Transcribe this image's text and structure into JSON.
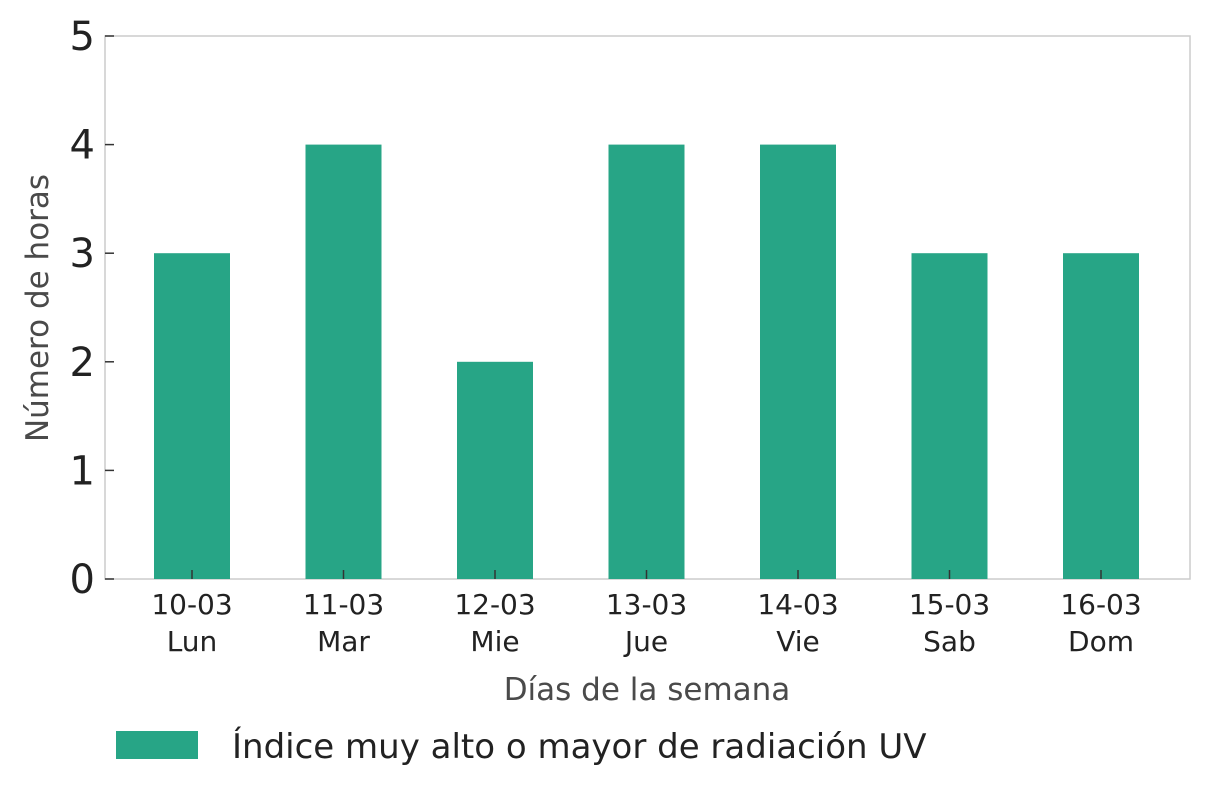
{
  "chart_data": {
    "type": "bar",
    "categories": [
      {
        "date": "10-03",
        "day": "Lun"
      },
      {
        "date": "11-03",
        "day": "Mar"
      },
      {
        "date": "12-03",
        "day": "Mie"
      },
      {
        "date": "13-03",
        "day": "Jue"
      },
      {
        "date": "14-03",
        "day": "Vie"
      },
      {
        "date": "15-03",
        "day": "Sab"
      },
      {
        "date": "16-03",
        "day": "Dom"
      }
    ],
    "series": [
      {
        "name": "Índice muy alto o mayor de radiación UV",
        "color": "#27a586",
        "values": [
          3,
          4,
          2,
          4,
          4,
          3,
          3
        ]
      }
    ],
    "xlabel": "Días de la semana",
    "ylabel": "Número de horas",
    "ylim": [
      0,
      5
    ],
    "yticks": [
      0,
      1,
      2,
      3,
      4,
      5
    ],
    "grid": false,
    "legend_position": "bottom-left"
  }
}
